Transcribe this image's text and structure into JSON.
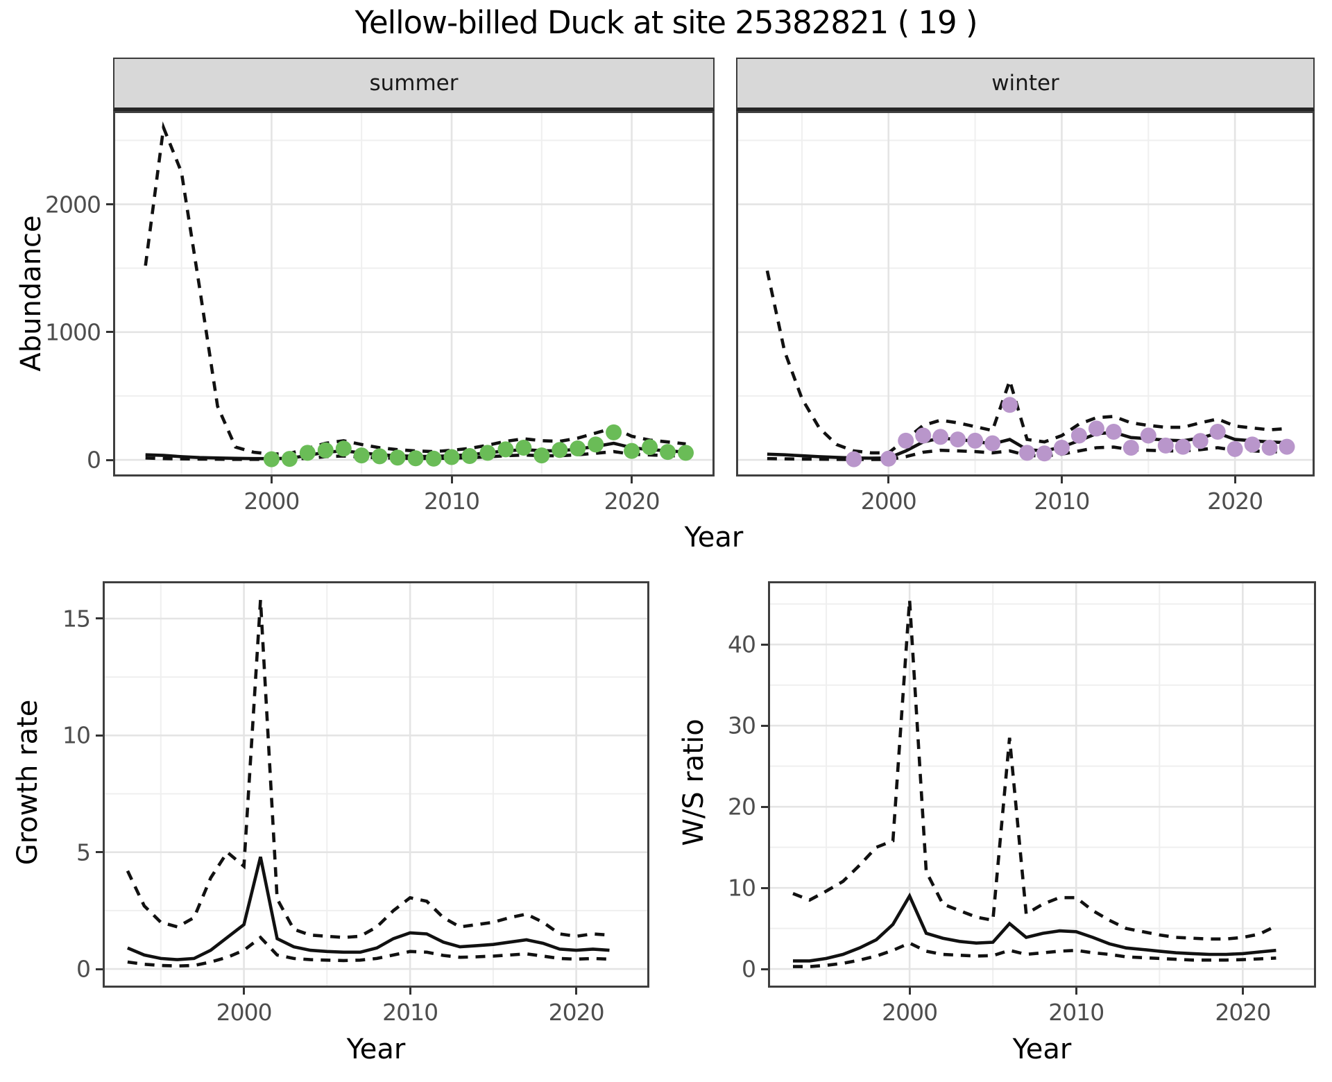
{
  "title": "Yellow-billed Duck at site 25382821 ( 19 )",
  "colors": {
    "summer_points": "#6abc57",
    "winter_points": "#b996cb",
    "line": "#111111",
    "grid_major": "#e4e4e4",
    "grid_minor": "#efefef",
    "panel_border": "#3f3f3f",
    "strip_background": "#d8d8d8",
    "tick_text": "#4d4d4d"
  },
  "chart_data": [
    {
      "id": "abundance-summer",
      "type": "line",
      "facet": "summer",
      "xlabel": "Year",
      "ylabel": "Abundance",
      "xlim": [
        1991.2,
        2024.6
      ],
      "ylim": [
        -130,
        2730
      ],
      "x_ticks": [
        2000,
        2010,
        2020
      ],
      "x_minor": [
        1995,
        2005,
        2015
      ],
      "y_ticks": [
        0,
        1000,
        2000
      ],
      "y_minor": [
        500,
        1500,
        2500
      ],
      "grid": true,
      "legend": "none",
      "x": [
        1993,
        1994,
        1995,
        1996,
        1997,
        1998,
        1999,
        2000,
        2001,
        2002,
        2003,
        2004,
        2005,
        2006,
        2007,
        2008,
        2009,
        2010,
        2011,
        2012,
        2013,
        2014,
        2015,
        2016,
        2017,
        2018,
        2019,
        2020,
        2021,
        2022,
        2023
      ],
      "series": [
        {
          "name": "upper_ci",
          "style": "dashed",
          "values": [
            1520,
            2600,
            2250,
            1350,
            420,
            100,
            60,
            45,
            50,
            90,
            130,
            150,
            120,
            95,
            80,
            70,
            65,
            75,
            90,
            115,
            145,
            165,
            150,
            145,
            170,
            210,
            250,
            185,
            155,
            140,
            125
          ]
        },
        {
          "name": "estimate",
          "style": "solid",
          "values": [
            40,
            35,
            25,
            18,
            15,
            12,
            10,
            10,
            12,
            35,
            60,
            70,
            55,
            40,
            32,
            28,
            27,
            32,
            40,
            55,
            70,
            80,
            72,
            70,
            85,
            105,
            130,
            95,
            80,
            72,
            60
          ]
        },
        {
          "name": "lower_ci",
          "style": "dashed",
          "values": [
            15,
            10,
            8,
            6,
            5,
            4,
            4,
            4,
            5,
            12,
            25,
            30,
            22,
            16,
            13,
            11,
            11,
            13,
            17,
            24,
            32,
            38,
            33,
            32,
            40,
            52,
            65,
            45,
            38,
            34,
            28
          ]
        }
      ],
      "points": {
        "name": "observed-counts-summer",
        "color": "#6abc57",
        "x": [
          2000,
          2001,
          2002,
          2003,
          2004,
          2005,
          2006,
          2007,
          2008,
          2009,
          2010,
          2011,
          2012,
          2013,
          2014,
          2015,
          2016,
          2017,
          2018,
          2019,
          2020,
          2021,
          2022,
          2023
        ],
        "y": [
          5,
          8,
          55,
          75,
          88,
          35,
          28,
          18,
          12,
          10,
          22,
          30,
          55,
          82,
          95,
          35,
          78,
          90,
          120,
          215,
          70,
          100,
          62,
          55
        ]
      }
    },
    {
      "id": "abundance-winter",
      "type": "line",
      "facet": "winter",
      "xlabel": "Year",
      "ylabel": "Abundance",
      "xlim": [
        1991.2,
        2024.6
      ],
      "ylim": [
        -130,
        2730
      ],
      "x_ticks": [
        2000,
        2010,
        2020
      ],
      "x_minor": [
        1995,
        2005,
        2015
      ],
      "y_ticks": [
        0,
        1000,
        2000
      ],
      "y_minor": [
        500,
        1500,
        2500
      ],
      "grid": true,
      "legend": "none",
      "x": [
        1993,
        1994,
        1995,
        1996,
        1997,
        1998,
        1999,
        2000,
        2001,
        2002,
        2003,
        2004,
        2005,
        2006,
        2007,
        2008,
        2009,
        2010,
        2011,
        2012,
        2013,
        2014,
        2015,
        2016,
        2017,
        2018,
        2019,
        2020,
        2021,
        2022,
        2023
      ],
      "series": [
        {
          "name": "upper_ci",
          "style": "dashed",
          "values": [
            1480,
            850,
            480,
            250,
            120,
            70,
            55,
            55,
            160,
            270,
            310,
            290,
            260,
            230,
            620,
            160,
            140,
            190,
            280,
            330,
            340,
            290,
            270,
            255,
            255,
            290,
            320,
            265,
            250,
            235,
            245
          ]
        },
        {
          "name": "estimate",
          "style": "solid",
          "values": [
            45,
            40,
            32,
            25,
            20,
            15,
            14,
            15,
            70,
            140,
            170,
            160,
            145,
            125,
            160,
            80,
            70,
            100,
            150,
            205,
            215,
            175,
            165,
            155,
            150,
            170,
            210,
            160,
            150,
            140,
            135
          ]
        },
        {
          "name": "lower_ci",
          "style": "dashed",
          "values": [
            10,
            8,
            6,
            5,
            4,
            3,
            3,
            3,
            25,
            60,
            75,
            70,
            65,
            55,
            70,
            35,
            30,
            45,
            70,
            95,
            100,
            80,
            75,
            70,
            70,
            80,
            95,
            75,
            70,
            65,
            60
          ]
        }
      ],
      "points": {
        "name": "observed-counts-winter",
        "color": "#b996cb",
        "x": [
          1998,
          2000,
          2001,
          2002,
          2003,
          2004,
          2005,
          2006,
          2007,
          2008,
          2009,
          2010,
          2011,
          2012,
          2013,
          2014,
          2015,
          2016,
          2017,
          2018,
          2019,
          2020,
          2021,
          2022,
          2023
        ],
        "y": [
          5,
          10,
          150,
          190,
          180,
          160,
          150,
          130,
          430,
          55,
          50,
          95,
          190,
          245,
          220,
          95,
          190,
          112,
          103,
          148,
          220,
          85,
          120,
          95,
          103
        ]
      }
    },
    {
      "id": "growth-rate",
      "type": "line",
      "facet": "",
      "xlabel": "Year",
      "ylabel": "Growth rate",
      "xlim": [
        1991.5,
        2024.4
      ],
      "ylim": [
        -0.8,
        16.6
      ],
      "x_ticks": [
        2000,
        2010,
        2020
      ],
      "x_minor": [
        1995,
        2005,
        2015
      ],
      "y_ticks": [
        0,
        5,
        10,
        15
      ],
      "y_minor": [
        2.5,
        7.5,
        12.5
      ],
      "grid": true,
      "legend": "none",
      "x": [
        1993,
        1994,
        1995,
        1996,
        1997,
        1998,
        1999,
        2000,
        2001,
        2002,
        2003,
        2004,
        2005,
        2006,
        2007,
        2008,
        2009,
        2010,
        2011,
        2012,
        2013,
        2014,
        2015,
        2016,
        2017,
        2018,
        2019,
        2020,
        2021,
        2022
      ],
      "series": [
        {
          "name": "upper_ci",
          "style": "dashed",
          "values": [
            4.2,
            2.7,
            2.0,
            1.8,
            2.2,
            3.9,
            5.0,
            4.4,
            15.8,
            3.0,
            1.7,
            1.45,
            1.4,
            1.35,
            1.4,
            1.8,
            2.5,
            3.05,
            2.9,
            2.2,
            1.8,
            1.9,
            2.0,
            2.2,
            2.35,
            2.0,
            1.5,
            1.4,
            1.5,
            1.45
          ]
        },
        {
          "name": "estimate",
          "style": "solid",
          "values": [
            0.9,
            0.6,
            0.45,
            0.4,
            0.45,
            0.8,
            1.35,
            1.9,
            4.8,
            1.3,
            0.95,
            0.8,
            0.75,
            0.72,
            0.72,
            0.9,
            1.3,
            1.55,
            1.5,
            1.15,
            0.95,
            1.0,
            1.05,
            1.15,
            1.25,
            1.1,
            0.85,
            0.8,
            0.85,
            0.8
          ]
        },
        {
          "name": "lower_ci",
          "style": "dashed",
          "values": [
            0.3,
            0.2,
            0.15,
            0.13,
            0.15,
            0.3,
            0.5,
            0.8,
            1.35,
            0.6,
            0.45,
            0.4,
            0.38,
            0.36,
            0.38,
            0.45,
            0.6,
            0.75,
            0.72,
            0.58,
            0.5,
            0.52,
            0.55,
            0.6,
            0.65,
            0.55,
            0.45,
            0.42,
            0.45,
            0.42
          ]
        }
      ],
      "points": null
    },
    {
      "id": "ws-ratio",
      "type": "line",
      "facet": "",
      "xlabel": "Year",
      "ylabel": "W/S ratio",
      "xlim": [
        1991.5,
        2024.4
      ],
      "ylim": [
        -2.3,
        47.8
      ],
      "x_ticks": [
        2000,
        2010,
        2020
      ],
      "x_minor": [
        1995,
        2005,
        2015
      ],
      "y_ticks": [
        0,
        10,
        20,
        30,
        40
      ],
      "y_minor": [
        5,
        15,
        25,
        35,
        45
      ],
      "grid": true,
      "legend": "none",
      "x": [
        1993,
        1994,
        1995,
        1996,
        1997,
        1998,
        1999,
        2000,
        2001,
        2002,
        2003,
        2004,
        2005,
        2006,
        2007,
        2008,
        2009,
        2010,
        2011,
        2012,
        2013,
        2014,
        2015,
        2016,
        2017,
        2018,
        2019,
        2020,
        2021,
        2022
      ],
      "series": [
        {
          "name": "upper_ci",
          "style": "dashed",
          "values": [
            9.3,
            8.5,
            9.6,
            10.8,
            12.8,
            15.0,
            15.8,
            45.5,
            12.0,
            8.0,
            7.2,
            6.4,
            6.0,
            28.5,
            6.8,
            8.0,
            8.8,
            8.8,
            7.2,
            6.0,
            5.0,
            4.6,
            4.2,
            3.9,
            3.8,
            3.7,
            3.7,
            3.9,
            4.3,
            5.3
          ]
        },
        {
          "name": "estimate",
          "style": "solid",
          "values": [
            1.0,
            1.0,
            1.3,
            1.8,
            2.6,
            3.6,
            5.5,
            9.0,
            4.4,
            3.8,
            3.4,
            3.2,
            3.3,
            5.6,
            3.9,
            4.4,
            4.7,
            4.6,
            3.9,
            3.1,
            2.6,
            2.4,
            2.2,
            2.0,
            1.9,
            1.8,
            1.8,
            1.9,
            2.1,
            2.3
          ]
        },
        {
          "name": "lower_ci",
          "style": "dashed",
          "values": [
            0.3,
            0.3,
            0.45,
            0.7,
            1.1,
            1.6,
            2.3,
            3.2,
            2.2,
            1.8,
            1.7,
            1.6,
            1.65,
            2.3,
            1.8,
            2.0,
            2.2,
            2.3,
            2.0,
            1.8,
            1.5,
            1.4,
            1.3,
            1.2,
            1.1,
            1.1,
            1.1,
            1.15,
            1.25,
            1.35
          ]
        }
      ],
      "points": null
    }
  ]
}
